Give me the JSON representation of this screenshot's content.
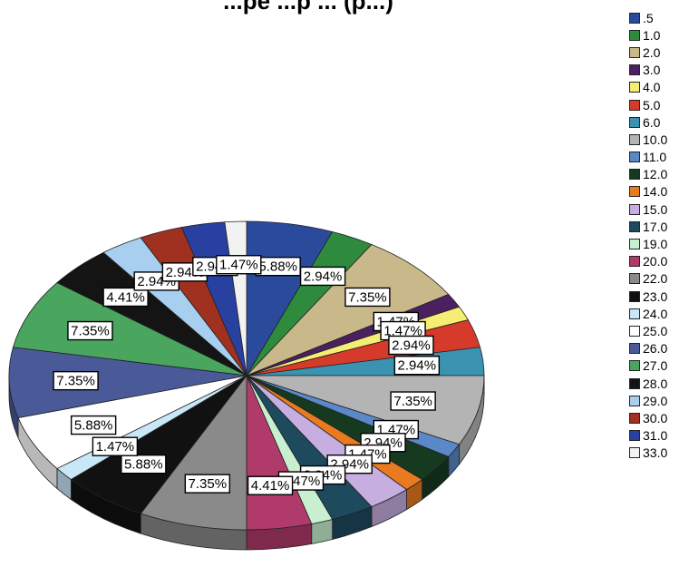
{
  "chart_data": {
    "type": "pie",
    "title": "...pe ...p ... (p...)",
    "legend_position": "right",
    "categories": [
      ".5",
      "1.0",
      "2.0",
      "3.0",
      "4.0",
      "5.0",
      "6.0",
      "10.0",
      "11.0",
      "12.0",
      "14.0",
      "15.0",
      "17.0",
      "19.0",
      "20.0",
      "22.0",
      "23.0",
      "24.0",
      "25.0",
      "26.0",
      "27.0",
      "28.0",
      "29.0",
      "30.0",
      "31.0",
      "33.0"
    ],
    "values": [
      5.88,
      2.94,
      7.35,
      1.47,
      1.47,
      2.94,
      2.94,
      7.35,
      1.47,
      2.94,
      1.47,
      2.94,
      2.94,
      1.47,
      4.41,
      7.35,
      5.88,
      1.47,
      5.88,
      7.35,
      7.35,
      4.41,
      2.94,
      2.94,
      2.94,
      1.47
    ],
    "data_labels": [
      "5.88%",
      "2.94%",
      "7.35%",
      "1.47%",
      "1.47%",
      "2.94%",
      "2.94%",
      "7.35%",
      "1.47%",
      "2.94%",
      "1.47%",
      "2.94%",
      "2.94%",
      "1.47%",
      "4.41%",
      "7.35%",
      "5.88%",
      "1.47%",
      "5.88%",
      "7.35%",
      "7.35%",
      "4.41%",
      "2.94%",
      "2.94%",
      "2.94%",
      "1.47%"
    ],
    "colors": [
      "#2a4a9c",
      "#2e8b3e",
      "#c9b98a",
      "#4a2060",
      "#f6ee72",
      "#d63a2a",
      "#3a93b0",
      "#b4b4b4",
      "#5a88c8",
      "#163a20",
      "#e87a20",
      "#c6aee0",
      "#1e4a5e",
      "#c8f0d0",
      "#b03a6a",
      "#8a8a8a",
      "#111111",
      "#c8e8f8",
      "#ffffff",
      "#4a5a98",
      "#4aa55e",
      "#141414",
      "#a8cff0",
      "#a03020",
      "#2840a0",
      "#f2f2f2"
    ]
  }
}
